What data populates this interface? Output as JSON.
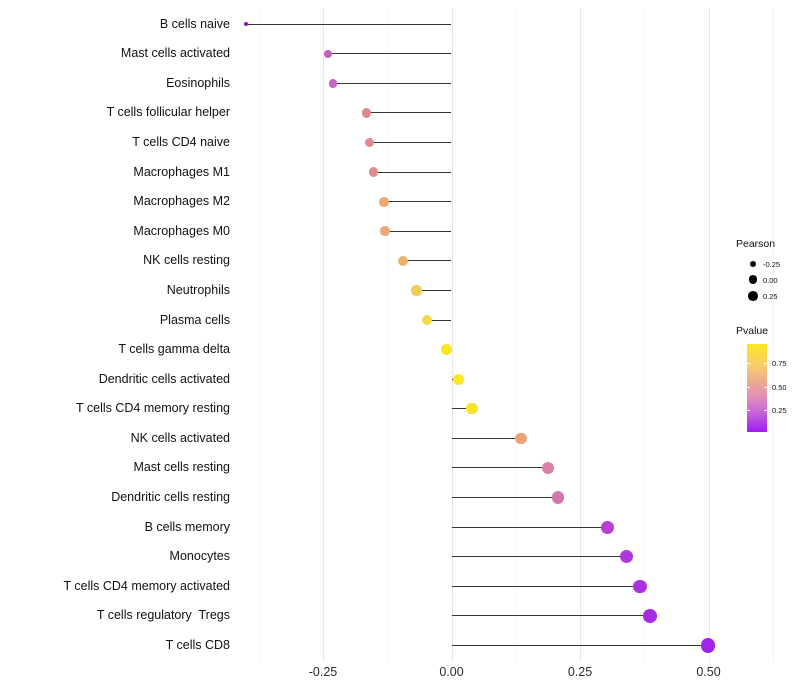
{
  "chart_data": {
    "type": "scatter",
    "variant": "lollipop",
    "title": "",
    "xlabel": "",
    "ylabel": "",
    "grid": true,
    "x_ticks": [
      {
        "label": "-0.25",
        "value": -0.25
      },
      {
        "label": "0.00",
        "value": 0.0
      },
      {
        "label": "0.25",
        "value": 0.25
      },
      {
        "label": "0.50",
        "value": 0.5
      }
    ],
    "minor_grid_values": [
      -0.375,
      -0.125,
      0.125,
      0.375,
      0.625
    ],
    "xlim": [
      -0.417,
      0.664
    ],
    "categories": [
      "B cells naive",
      "Mast cells activated",
      "Eosinophils",
      "T cells follicular helper",
      "T cells CD4 naive",
      "Macrophages M1",
      "Macrophages M2",
      "Macrophages M0",
      "NK cells resting",
      "Neutrophils",
      "Plasma cells",
      "T cells gamma delta",
      "Dendritic cells activated",
      "T cells CD4 memory resting",
      "NK cells activated",
      "Mast cells resting",
      "Dendritic cells resting",
      "B cells memory",
      "Monocytes",
      "T cells CD4 memory activated",
      "T cells regulatory  Tregs",
      "T cells CD8"
    ],
    "series": [
      {
        "name": "Pearson",
        "values": [
          -0.4,
          -0.24,
          -0.23,
          -0.165,
          -0.16,
          -0.152,
          -0.131,
          -0.129,
          -0.094,
          -0.068,
          -0.048,
          -0.009,
          0.013,
          0.04,
          0.135,
          0.188,
          0.207,
          0.304,
          0.341,
          0.367,
          0.386,
          0.499
        ]
      }
    ],
    "point_colors": [
      "#8516BE",
      "#C45EC1",
      "#C763C3",
      "#DB8A8E",
      "#DB8A8E",
      "#DC8D8D",
      "#EDA878",
      "#EDA878",
      "#EEB167",
      "#F2CD55",
      "#F5DA47",
      "#FAE623",
      "#FAE623",
      "#F8E52C",
      "#EBA379",
      "#DC7FA5",
      "#D476AE",
      "#B73FD6",
      "#B038DB",
      "#AB30E0",
      "#A72BE3",
      "#A124E9"
    ],
    "point_radii": [
      2.3,
      4.0,
      4.2,
      4.6,
      4.6,
      4.7,
      4.8,
      4.8,
      5.0,
      5.1,
      5.2,
      5.4,
      5.5,
      5.6,
      5.8,
      6.0,
      6.1,
      6.4,
      6.6,
      6.7,
      6.8,
      7.3
    ],
    "stem_color": "#353535",
    "legend_size": {
      "title": "Pearson",
      "entries": [
        {
          "label": "-0.25",
          "radius": 3.2
        },
        {
          "label": "0.00",
          "radius": 4.2
        },
        {
          "label": "0.25",
          "radius": 4.9
        }
      ]
    },
    "legend_color": {
      "title": "Pvalue",
      "tick_labels": [
        "0.75",
        "0.50",
        "0.25"
      ],
      "gradient_top_to_bottom": [
        "#FBE723",
        "#F6CC6F",
        "#EBA795",
        "#E090B8",
        "#C564D8",
        "#A31BEF"
      ]
    }
  }
}
